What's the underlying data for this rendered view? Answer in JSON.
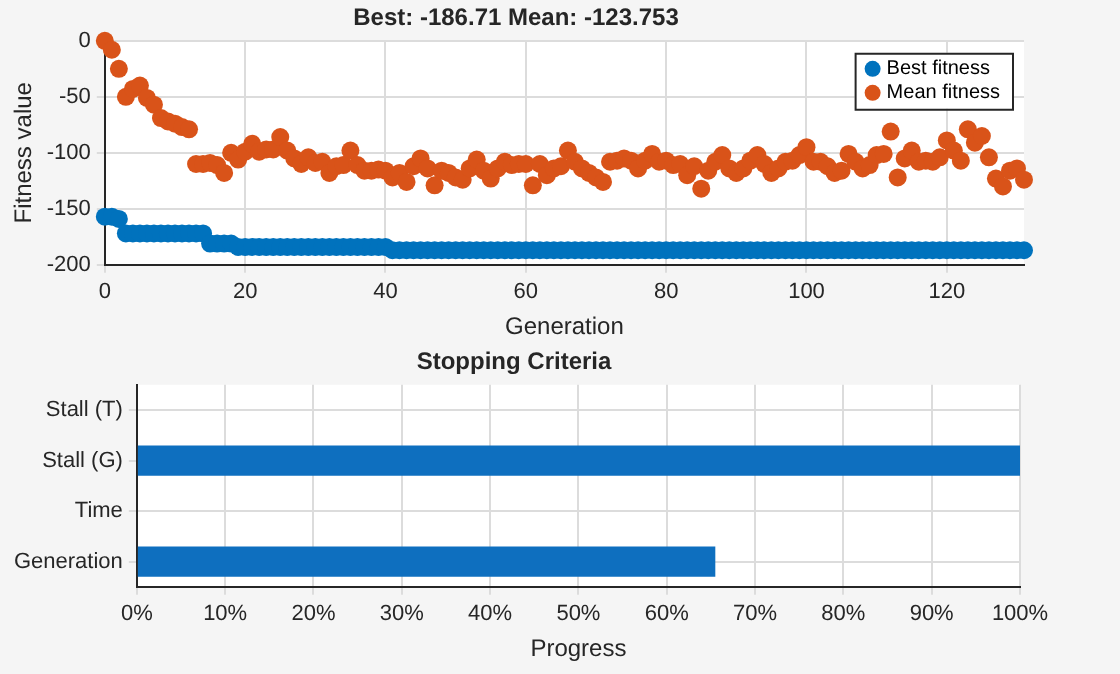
{
  "chart_data": [
    {
      "type": "scatter",
      "title": "Best: -186.71 Mean: -123.753",
      "xlabel": "Generation",
      "ylabel": "Fitness value",
      "x": [
        0,
        1,
        2,
        3,
        4,
        5,
        6,
        7,
        8,
        9,
        10,
        11,
        12,
        13,
        14,
        15,
        16,
        17,
        18,
        19,
        20,
        21,
        22,
        23,
        24,
        25,
        26,
        27,
        28,
        29,
        30,
        31,
        32,
        33,
        34,
        35,
        36,
        37,
        38,
        39,
        40,
        41,
        42,
        43,
        44,
        45,
        46,
        47,
        48,
        49,
        50,
        51,
        52,
        53,
        54,
        55,
        56,
        57,
        58,
        59,
        60,
        61,
        62,
        63,
        64,
        65,
        66,
        67,
        68,
        69,
        70,
        71,
        72,
        73,
        74,
        75,
        76,
        77,
        78,
        79,
        80,
        81,
        82,
        83,
        84,
        85,
        86,
        87,
        88,
        89,
        90,
        91,
        92,
        93,
        94,
        95,
        96,
        97,
        98,
        99,
        100,
        101,
        102,
        103,
        104,
        105,
        106,
        107,
        108,
        109,
        110,
        111,
        112,
        113,
        114,
        115,
        116,
        117,
        118,
        119,
        120,
        121,
        122,
        123,
        124,
        125,
        126,
        127,
        128,
        129,
        130,
        131
      ],
      "series": [
        {
          "name": "Best fitness",
          "color": "#0072bd",
          "values": [
            -157,
            -157,
            -159,
            -172,
            -172,
            -172,
            -172,
            -172,
            -172,
            -172,
            -172,
            -172,
            -172,
            -172,
            -172,
            -181,
            -181,
            -181,
            -181,
            -184,
            -184,
            -184,
            -184,
            -184,
            -184,
            -184,
            -184,
            -184,
            -184,
            -184,
            -184,
            -184,
            -184,
            -184,
            -184,
            -184,
            -184,
            -184,
            -184,
            -184,
            -184,
            -187,
            -187,
            -187,
            -187,
            -187,
            -187,
            -187,
            -187,
            -187,
            -187,
            -187,
            -187,
            -187,
            -187,
            -187,
            -187,
            -187,
            -187,
            -187,
            -187,
            -187,
            -187,
            -187,
            -187,
            -187,
            -187,
            -187,
            -187,
            -187,
            -187,
            -187,
            -187,
            -187,
            -187,
            -187,
            -187,
            -187,
            -187,
            -187,
            -187,
            -187,
            -187,
            -187,
            -187,
            -187,
            -187,
            -187,
            -187,
            -187,
            -187,
            -187,
            -187,
            -187,
            -187,
            -187,
            -187,
            -187,
            -187,
            -187,
            -187,
            -187,
            -187,
            -187,
            -187,
            -187,
            -187,
            -187,
            -187,
            -187,
            -187,
            -187,
            -187,
            -187,
            -187,
            -187,
            -187,
            -187,
            -187,
            -187,
            -187,
            -187,
            -187,
            -187,
            -187,
            -187,
            -187,
            -187,
            -187,
            -187,
            -187,
            -187
          ]
        },
        {
          "name": "Mean fitness",
          "color": "#d95319",
          "values": [
            0,
            -8,
            -25,
            -50,
            -43,
            -40,
            -51,
            -57,
            -69,
            -72,
            -74,
            -77,
            -79,
            -110,
            -110,
            -109,
            -111,
            -118,
            -100,
            -106,
            -99,
            -92,
            -99,
            -97,
            -97,
            -86,
            -98,
            -105,
            -110,
            -104,
            -109,
            -108,
            -118,
            -112,
            -111,
            -98,
            -111,
            -116,
            -116,
            -115,
            -116,
            -122,
            -118,
            -126,
            -112,
            -105,
            -114,
            -129,
            -116,
            -118,
            -122,
            -124,
            -114,
            -106,
            -116,
            -123,
            -114,
            -108,
            -111,
            -110,
            -110,
            -129,
            -110,
            -120,
            -114,
            -112,
            -98,
            -108,
            -114,
            -118,
            -122,
            -126,
            -108,
            -107,
            -105,
            -107,
            -114,
            -107,
            -101,
            -108,
            -107,
            -111,
            -110,
            -120,
            -112,
            -132,
            -116,
            -108,
            -102,
            -114,
            -118,
            -114,
            -107,
            -102,
            -110,
            -118,
            -114,
            -108,
            -107,
            -102,
            -95,
            -108,
            -108,
            -112,
            -118,
            -116,
            -101,
            -108,
            -114,
            -111,
            -102,
            -101,
            -81,
            -122,
            -105,
            -98,
            -108,
            -107,
            -108,
            -104,
            -89,
            -98,
            -107,
            -79,
            -91,
            -85,
            -104,
            -123,
            -130,
            -116,
            -114,
            -124
          ]
        }
      ],
      "xlim": [
        0,
        131
      ],
      "xticks": [
        0,
        20,
        40,
        60,
        80,
        100,
        120
      ],
      "ylim": [
        -200,
        0
      ],
      "yticks": [
        -200,
        -150,
        -100,
        -50,
        0
      ],
      "grid": true,
      "legend": "top right",
      "marker": "circle"
    },
    {
      "type": "bar",
      "orientation": "horizontal",
      "title": "Stopping Criteria",
      "xlabel": "Progress",
      "categories": [
        "Stall (T)",
        "Stall (G)",
        "Time",
        "Generation"
      ],
      "values": [
        0,
        100,
        0,
        65.5
      ],
      "color": "#0e6fbf",
      "xlim": [
        0,
        100
      ],
      "xticks": [
        {
          "value": 0,
          "label": "0%"
        },
        {
          "value": 10,
          "label": "10%"
        },
        {
          "value": 20,
          "label": "20%"
        },
        {
          "value": 30,
          "label": "30%"
        },
        {
          "value": 40,
          "label": "40%"
        },
        {
          "value": 50,
          "label": "50%"
        },
        {
          "value": 60,
          "label": "60%"
        },
        {
          "value": 70,
          "label": "70%"
        },
        {
          "value": 80,
          "label": "80%"
        },
        {
          "value": 90,
          "label": "90%"
        },
        {
          "value": 100,
          "label": "100%"
        }
      ],
      "grid": true
    }
  ]
}
